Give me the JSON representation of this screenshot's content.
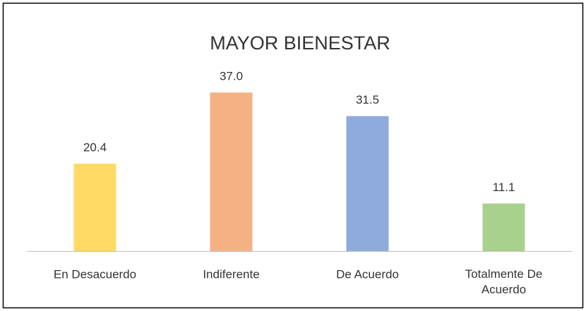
{
  "chart_data": {
    "type": "bar",
    "title": "MAYOR BIENESTAR",
    "categories": [
      "En Desacuerdo",
      "Indiferente",
      "De Acuerdo",
      "Totalmente De Acuerdo"
    ],
    "values": [
      20.4,
      37.0,
      31.5,
      11.1
    ],
    "value_labels": [
      "20.4",
      "37.0",
      "31.5",
      "11.1"
    ],
    "colors": [
      "#FFD966",
      "#F4B183",
      "#8FAADC",
      "#A9D18E"
    ],
    "ylim": [
      0,
      40
    ]
  }
}
